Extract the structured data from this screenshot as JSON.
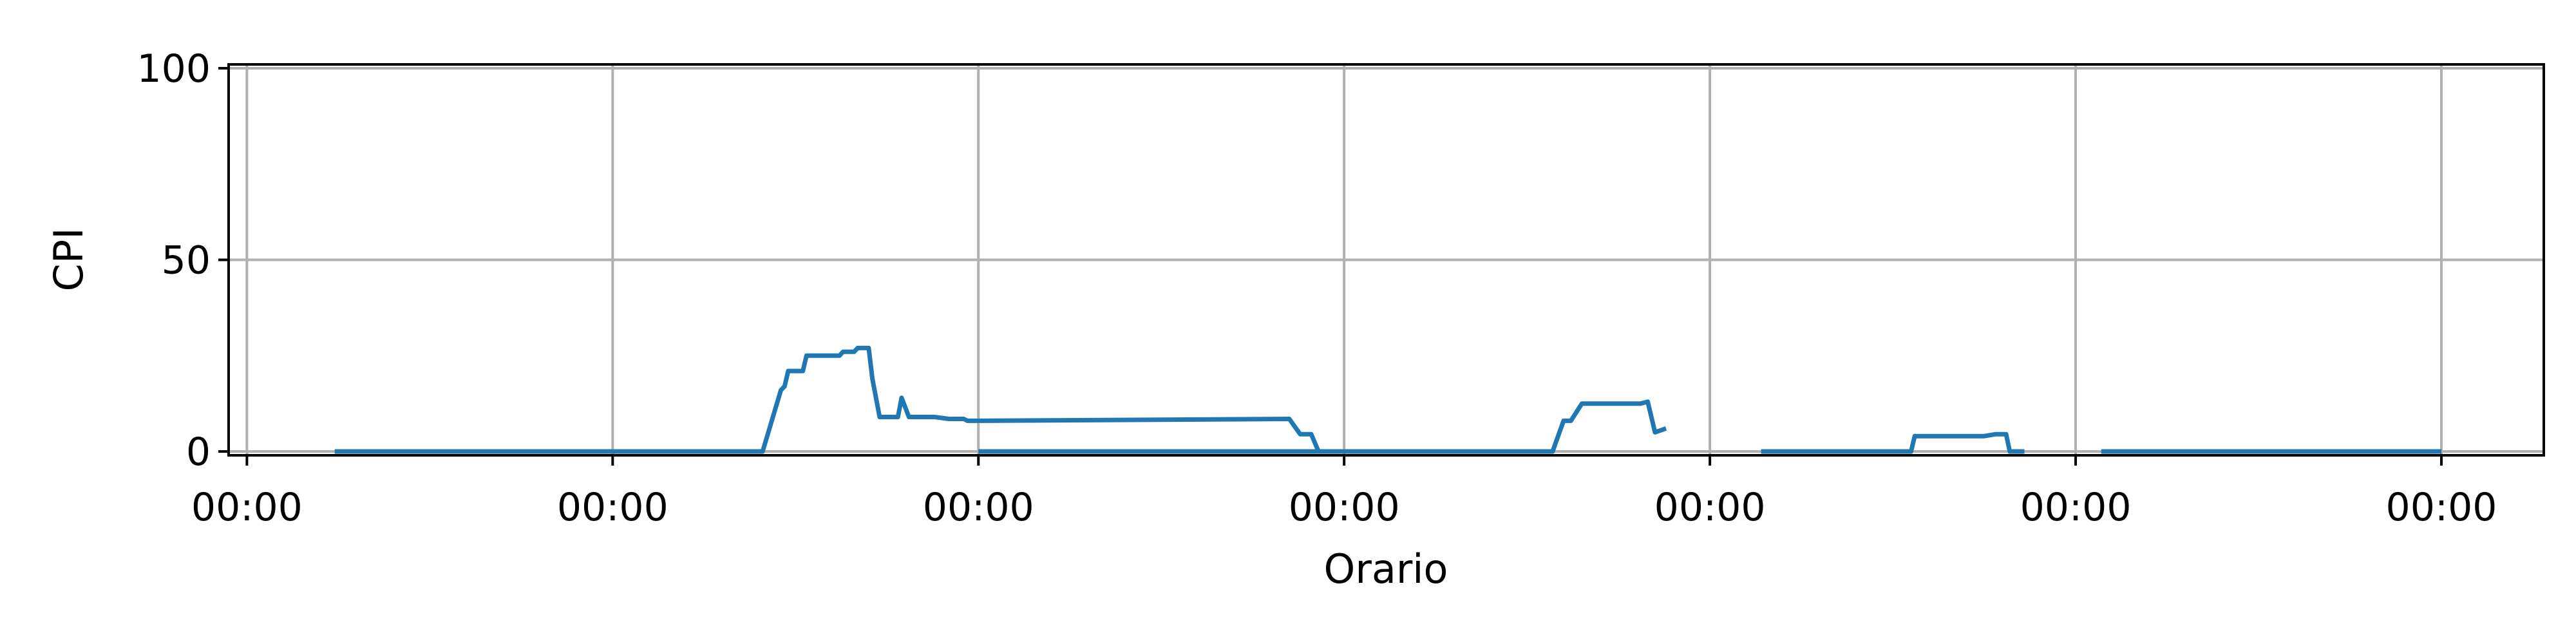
{
  "chart_data": {
    "type": "line",
    "title": "",
    "xlabel": "Orario",
    "ylabel": "CPI",
    "ylim": [
      -1,
      101
    ],
    "xlim": [
      -0.05,
      6.28
    ],
    "grid": true,
    "legend": "none",
    "line_color": "#1f77b4",
    "grid_color": "#b0b0b0",
    "x_ticks": [
      {
        "value": 0,
        "label": "00:00"
      },
      {
        "value": 1,
        "label": "00:00"
      },
      {
        "value": 2,
        "label": "00:00"
      },
      {
        "value": 3,
        "label": "00:00"
      },
      {
        "value": 4,
        "label": "00:00"
      },
      {
        "value": 5,
        "label": "00:00"
      },
      {
        "value": 6,
        "label": "00:00"
      }
    ],
    "y_ticks": [
      {
        "value": 0,
        "label": "0"
      },
      {
        "value": 50,
        "label": "50"
      },
      {
        "value": 100,
        "label": "100"
      }
    ],
    "segments": [
      {
        "x": [
          0.24,
          1.41,
          1.46,
          1.47,
          1.48,
          1.5,
          1.52,
          1.53,
          1.6,
          1.62,
          1.63,
          1.66,
          1.67,
          1.7,
          1.71,
          1.73,
          1.75,
          1.77,
          1.78,
          1.79,
          1.81,
          1.84,
          1.86,
          1.88,
          1.92,
          1.93,
          1.94,
          1.96,
          1.97,
          2.0,
          2.85,
          2.88,
          2.91,
          2.93
        ],
        "y": [
          0,
          0,
          16,
          17,
          21,
          21,
          21,
          25,
          25,
          25,
          26,
          26,
          27,
          27,
          19,
          9,
          9,
          9,
          9,
          14,
          9,
          9,
          9,
          9,
          8.5,
          8.5,
          8.5,
          8.5,
          8,
          8,
          8.5,
          4.5,
          4.5,
          0
        ]
      },
      {
        "x": [
          2.0,
          3.57,
          3.6,
          3.62,
          3.65,
          3.68,
          3.8,
          3.81,
          3.83,
          3.85,
          3.88
        ],
        "y": [
          0,
          0,
          8,
          8,
          12.5,
          12.5,
          12.5,
          12.5,
          13,
          5,
          6
        ]
      },
      {
        "x": [
          4.14,
          4.55,
          4.56,
          4.75,
          4.78,
          4.81,
          4.82,
          4.86
        ],
        "y": [
          0,
          0,
          4,
          4,
          4.5,
          4.5,
          0,
          0
        ]
      },
      {
        "x": [
          5.07,
          6.0
        ],
        "y": [
          0,
          0
        ]
      }
    ]
  }
}
